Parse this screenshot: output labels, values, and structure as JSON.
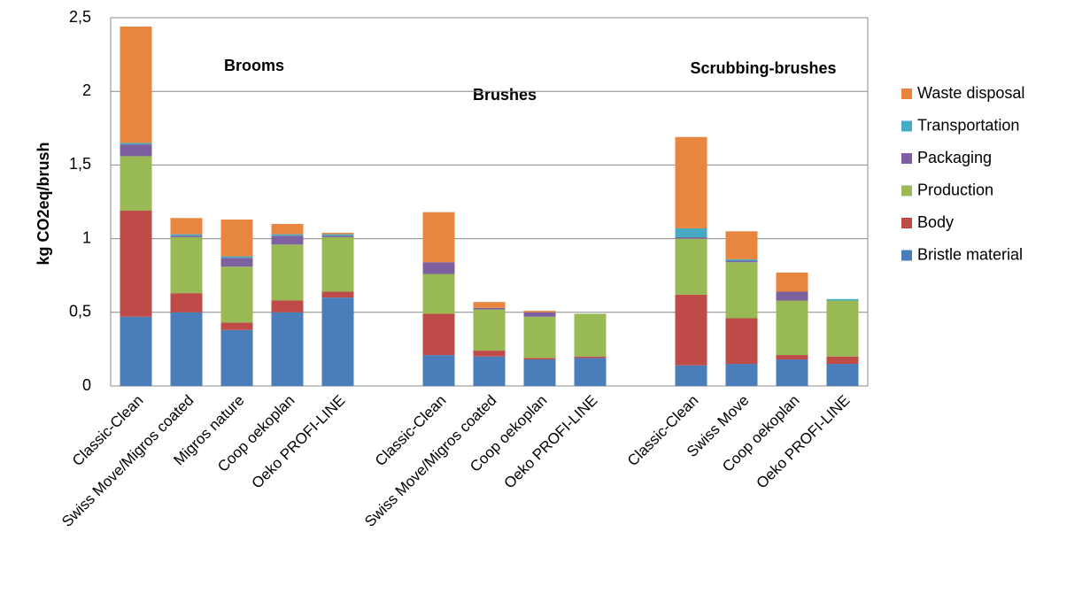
{
  "chart_data": {
    "type": "stacked_bar",
    "ylabel": "kg CO2eq/brush",
    "annotations": [
      "Brooms",
      "Brushes",
      "Scrubbing-brushes"
    ],
    "categories": [
      "Classic-Clean",
      "Swiss Move/Migros coated",
      "Migros nature",
      "Coop oekoplan",
      "Oeko PROFI-LINE",
      null,
      "Classic-Clean",
      "Swiss Move/Migros coated",
      "Coop oekoplan",
      "Oeko PROFI-LINE",
      null,
      "Classic-Clean",
      "Swiss Move",
      "Coop oekoplan",
      "Oeko PROFI-LINE"
    ],
    "series": [
      {
        "name": "Bristle material",
        "color": "#4a7ebb",
        "values": [
          0.47,
          0.5,
          0.38,
          0.5,
          0.6,
          null,
          0.21,
          0.2,
          0.18,
          0.19,
          null,
          0.14,
          0.15,
          0.18,
          0.15
        ]
      },
      {
        "name": "Body",
        "color": "#be4b48",
        "values": [
          0.72,
          0.13,
          0.05,
          0.08,
          0.04,
          null,
          0.28,
          0.04,
          0.01,
          0.01,
          null,
          0.48,
          0.31,
          0.03,
          0.05
        ]
      },
      {
        "name": "Production",
        "color": "#98b954",
        "values": [
          0.37,
          0.38,
          0.38,
          0.38,
          0.37,
          null,
          0.27,
          0.28,
          0.28,
          0.29,
          null,
          0.38,
          0.38,
          0.37,
          0.38
        ]
      },
      {
        "name": "Packaging",
        "color": "#7d60a0",
        "values": [
          0.08,
          0.01,
          0.06,
          0.06,
          0.01,
          null,
          0.08,
          0.01,
          0.03,
          0,
          null,
          0.01,
          0.01,
          0.06,
          0
        ]
      },
      {
        "name": "Transportation",
        "color": "#46aac5",
        "values": [
          0.01,
          0.01,
          0.01,
          0.01,
          0.01,
          null,
          0,
          0,
          0,
          0,
          null,
          0.06,
          0.01,
          0,
          0.01
        ]
      },
      {
        "name": "Waste disposal",
        "color": "#e8853e",
        "values": [
          0.79,
          0.11,
          0.25,
          0.07,
          0.01,
          null,
          0.34,
          0.04,
          0.01,
          0,
          null,
          0.62,
          0.19,
          0.13,
          0
        ]
      }
    ],
    "ylim": [
      0,
      2.5
    ],
    "yticks": [
      0,
      {
        "value": 0.5,
        "label": "0,5"
      },
      1,
      {
        "value": 1.5,
        "label": "1,5"
      },
      2,
      {
        "value": 2.5,
        "label": "2,5"
      }
    ],
    "grid": true
  }
}
